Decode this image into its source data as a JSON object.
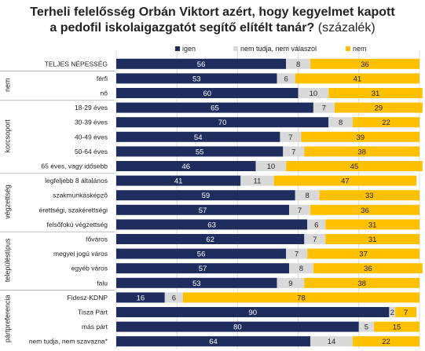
{
  "header": {
    "title_line1": "Terheli felelősség Orbán Viktort azért, hogy kegyelmet kapott",
    "title_line2": "a pedofil iskolaigazgatót segítő elítélt tanár?",
    "title_suffix": "(százalék)"
  },
  "legend": [
    "igen",
    "nem tudja, nem válaszol",
    "nem"
  ],
  "colors": {
    "igen": "#1f2d5e",
    "ntnv": "#d9d9d9",
    "nem": "#ffc000",
    "grid": "#dcdcdc",
    "label": "#222222"
  },
  "chart_data": {
    "type": "bar",
    "stacked": true,
    "orientation": "horizontal",
    "xlim": [
      0,
      100
    ],
    "categories": [
      "TELJES NÉPESSÉG",
      "férfi",
      "nő",
      "18-29 éves",
      "30-39 éves",
      "40-49 éves",
      "50-64 éves",
      "65 éves, vagy idősebb",
      "legfeljebb 8 általános",
      "szakmunkásképző",
      "érettségi, szakérettségi",
      "felsőfokú végzettség",
      "főváros",
      "megyei jogú város",
      "egyéb város",
      "falu",
      "Fidesz-KDNP",
      "Tisza Párt",
      "más párt",
      "nem tudja, nem szavazna*"
    ],
    "groups": [
      {
        "label": "",
        "start": 0,
        "end": 0
      },
      {
        "label": "nem",
        "start": 1,
        "end": 2
      },
      {
        "label": "korcsoport",
        "start": 3,
        "end": 7
      },
      {
        "label": "végzettség",
        "start": 8,
        "end": 11
      },
      {
        "label": "településtípus",
        "start": 12,
        "end": 15
      },
      {
        "label": "pártpreferencia",
        "start": 16,
        "end": 19
      }
    ],
    "series": [
      {
        "name": "igen",
        "values": [
          56,
          53,
          60,
          65,
          70,
          54,
          55,
          46,
          41,
          59,
          57,
          63,
          62,
          56,
          57,
          53,
          16,
          90,
          80,
          64
        ]
      },
      {
        "name": "nem tudja, nem válaszol",
        "values": [
          8,
          6,
          10,
          7,
          8,
          7,
          7,
          10,
          11,
          8,
          7,
          6,
          7,
          7,
          8,
          9,
          6,
          2,
          5,
          14
        ]
      },
      {
        "name": "nem",
        "values": [
          36,
          41,
          31,
          29,
          22,
          39,
          38,
          45,
          47,
          33,
          36,
          31,
          31,
          37,
          36,
          38,
          78,
          7,
          15,
          22
        ]
      }
    ]
  }
}
